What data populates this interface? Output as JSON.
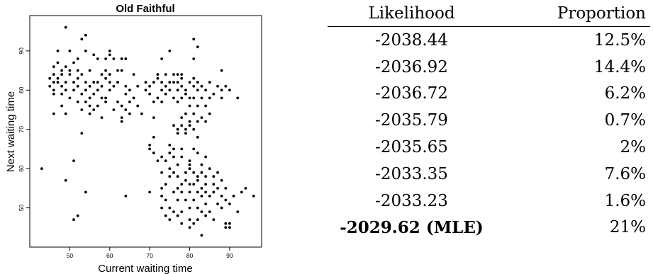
{
  "chart_data": {
    "type": "scatter",
    "title": "Old Faithful",
    "xlabel": "Current waiting time",
    "ylabel": "Next waiting time",
    "xlim": [
      40,
      98
    ],
    "ylim": [
      40,
      99
    ],
    "xticks": [
      "50",
      "60",
      "70",
      "80",
      "90"
    ],
    "yticks": [
      "50",
      "60",
      "70",
      "80",
      "90"
    ],
    "points": [
      [
        49,
        96
      ],
      [
        53,
        93
      ],
      [
        54,
        94
      ],
      [
        81,
        93
      ],
      [
        82,
        91
      ],
      [
        47,
        90
      ],
      [
        50,
        90
      ],
      [
        54,
        90
      ],
      [
        60,
        90
      ],
      [
        75,
        90
      ],
      [
        56,
        89
      ],
      [
        57,
        88
      ],
      [
        59,
        88
      ],
      [
        60,
        89
      ],
      [
        61,
        88
      ],
      [
        52,
        88
      ],
      [
        63,
        88
      ],
      [
        64,
        88
      ],
      [
        73,
        88
      ],
      [
        81,
        88
      ],
      [
        47,
        87
      ],
      [
        51,
        87
      ],
      [
        49,
        86
      ],
      [
        46,
        86
      ],
      [
        48,
        85
      ],
      [
        50,
        85
      ],
      [
        52,
        85
      ],
      [
        55,
        85
      ],
      [
        59,
        85
      ],
      [
        60,
        84
      ],
      [
        62,
        85
      ],
      [
        63,
        85
      ],
      [
        88,
        85
      ],
      [
        46,
        84
      ],
      [
        47,
        83
      ],
      [
        48,
        84
      ],
      [
        50,
        84
      ],
      [
        52,
        83
      ],
      [
        53,
        84
      ],
      [
        58,
        84
      ],
      [
        59,
        83
      ],
      [
        66,
        84
      ],
      [
        72,
        84
      ],
      [
        74,
        84
      ],
      [
        76,
        84
      ],
      [
        77,
        84
      ],
      [
        78,
        84
      ],
      [
        78,
        83
      ],
      [
        45,
        83
      ],
      [
        46,
        82
      ],
      [
        47,
        82
      ],
      [
        49,
        82
      ],
      [
        51,
        82
      ],
      [
        54,
        82
      ],
      [
        56,
        82
      ],
      [
        57,
        82
      ],
      [
        60,
        82
      ],
      [
        62,
        82
      ],
      [
        69,
        82
      ],
      [
        71,
        82
      ],
      [
        72,
        83
      ],
      [
        73,
        82
      ],
      [
        75,
        82
      ],
      [
        76,
        82
      ],
      [
        77,
        82
      ],
      [
        80,
        82
      ],
      [
        81,
        83
      ],
      [
        82,
        82
      ],
      [
        85,
        82
      ],
      [
        45,
        81
      ],
      [
        48,
        81
      ],
      [
        52,
        81
      ],
      [
        55,
        81
      ],
      [
        58,
        81
      ],
      [
        61,
        81
      ],
      [
        64,
        81
      ],
      [
        67,
        81
      ],
      [
        70,
        81
      ],
      [
        74,
        81
      ],
      [
        78,
        81
      ],
      [
        81,
        81
      ],
      [
        83,
        81
      ],
      [
        87,
        81
      ],
      [
        88,
        80
      ],
      [
        89,
        81
      ],
      [
        46,
        80
      ],
      [
        49,
        80
      ],
      [
        51,
        80
      ],
      [
        54,
        80
      ],
      [
        57,
        80
      ],
      [
        60,
        80
      ],
      [
        65,
        80
      ],
      [
        69,
        80
      ],
      [
        70,
        79
      ],
      [
        73,
        80
      ],
      [
        75,
        80
      ],
      [
        77,
        80
      ],
      [
        79,
        80
      ],
      [
        82,
        80
      ],
      [
        84,
        80
      ],
      [
        86,
        79
      ],
      [
        90,
        80
      ],
      [
        46,
        79
      ],
      [
        48,
        79
      ],
      [
        50,
        78
      ],
      [
        53,
        79
      ],
      [
        55,
        78
      ],
      [
        56,
        79
      ],
      [
        58,
        78
      ],
      [
        59,
        78
      ],
      [
        64,
        79
      ],
      [
        66,
        78
      ],
      [
        72,
        78
      ],
      [
        74,
        79
      ],
      [
        76,
        78
      ],
      [
        78,
        78
      ],
      [
        79,
        79
      ],
      [
        80,
        78
      ],
      [
        81,
        78
      ],
      [
        83,
        78
      ],
      [
        85,
        78
      ],
      [
        88,
        78
      ],
      [
        92,
        78
      ],
      [
        52,
        77
      ],
      [
        54,
        77
      ],
      [
        55,
        76
      ],
      [
        57,
        76
      ],
      [
        59,
        77
      ],
      [
        62,
        77
      ],
      [
        63,
        76
      ],
      [
        65,
        77
      ],
      [
        67,
        76
      ],
      [
        71,
        77
      ],
      [
        73,
        77
      ],
      [
        77,
        77
      ],
      [
        80,
        76
      ],
      [
        82,
        76
      ],
      [
        84,
        76
      ],
      [
        48,
        76
      ],
      [
        53,
        75
      ],
      [
        56,
        75
      ],
      [
        61,
        75
      ],
      [
        64,
        75
      ],
      [
        65,
        74
      ],
      [
        46,
        74
      ],
      [
        49,
        74
      ],
      [
        55,
        74
      ],
      [
        58,
        73
      ],
      [
        63,
        73
      ],
      [
        68,
        74
      ],
      [
        79,
        74
      ],
      [
        81,
        74
      ],
      [
        83,
        73
      ],
      [
        85,
        74
      ],
      [
        63,
        72
      ],
      [
        71,
        73
      ],
      [
        78,
        73
      ],
      [
        80,
        72
      ],
      [
        82,
        72
      ],
      [
        84,
        72
      ],
      [
        76,
        71
      ],
      [
        78,
        71
      ],
      [
        80,
        71
      ],
      [
        79,
        70
      ],
      [
        81,
        70
      ],
      [
        77,
        70
      ],
      [
        53,
        69
      ],
      [
        77,
        69
      ],
      [
        79,
        69
      ],
      [
        82,
        68
      ],
      [
        71,
        68
      ],
      [
        70,
        66
      ],
      [
        75,
        66
      ],
      [
        76,
        65
      ],
      [
        78,
        65
      ],
      [
        81,
        65
      ],
      [
        82,
        64
      ],
      [
        70,
        65
      ],
      [
        73,
        63
      ],
      [
        75,
        64
      ],
      [
        76,
        63
      ],
      [
        78,
        63
      ],
      [
        80,
        62
      ],
      [
        84,
        63
      ],
      [
        71,
        64
      ],
      [
        72,
        62
      ],
      [
        74,
        62
      ],
      [
        77,
        61
      ],
      [
        80,
        61
      ],
      [
        83,
        61
      ],
      [
        85,
        60
      ],
      [
        51,
        62
      ],
      [
        43,
        60
      ],
      [
        73,
        59
      ],
      [
        75,
        60
      ],
      [
        76,
        59
      ],
      [
        79,
        59
      ],
      [
        80,
        60
      ],
      [
        81,
        59
      ],
      [
        82,
        58
      ],
      [
        83,
        59
      ],
      [
        84,
        58
      ],
      [
        86,
        58
      ],
      [
        87,
        59
      ],
      [
        88,
        57
      ],
      [
        49,
        57
      ],
      [
        75,
        58
      ],
      [
        77,
        58
      ],
      [
        79,
        57
      ],
      [
        80,
        56
      ],
      [
        82,
        57
      ],
      [
        84,
        56
      ],
      [
        86,
        56
      ],
      [
        74,
        56
      ],
      [
        77,
        55
      ],
      [
        78,
        56
      ],
      [
        81,
        56
      ],
      [
        83,
        55
      ],
      [
        82,
        54
      ],
      [
        84,
        54
      ],
      [
        87,
        55
      ],
      [
        89,
        55
      ],
      [
        91,
        53
      ],
      [
        93,
        54
      ],
      [
        94,
        55
      ],
      [
        96,
        53
      ],
      [
        54,
        54
      ],
      [
        64,
        53
      ],
      [
        70,
        54
      ],
      [
        73,
        55
      ],
      [
        73,
        53
      ],
      [
        76,
        54
      ],
      [
        78,
        54
      ],
      [
        80,
        54
      ],
      [
        83,
        53
      ],
      [
        85,
        53
      ],
      [
        86,
        54
      ],
      [
        88,
        53
      ],
      [
        89,
        52
      ],
      [
        74,
        52
      ],
      [
        77,
        52
      ],
      [
        79,
        52
      ],
      [
        81,
        52
      ],
      [
        84,
        51
      ],
      [
        87,
        51
      ],
      [
        90,
        51
      ],
      [
        73,
        50
      ],
      [
        75,
        50
      ],
      [
        76,
        49
      ],
      [
        78,
        49
      ],
      [
        80,
        50
      ],
      [
        82,
        50
      ],
      [
        83,
        49
      ],
      [
        85,
        49
      ],
      [
        88,
        50
      ],
      [
        74,
        48
      ],
      [
        77,
        48
      ],
      [
        80,
        47
      ],
      [
        81,
        46
      ],
      [
        82,
        47
      ],
      [
        84,
        48
      ],
      [
        86,
        47
      ],
      [
        89,
        46
      ],
      [
        90,
        45
      ],
      [
        89,
        45
      ],
      [
        90,
        46
      ],
      [
        51,
        47
      ],
      [
        52,
        48
      ],
      [
        75,
        47
      ],
      [
        78,
        46
      ],
      [
        80,
        45
      ],
      [
        83,
        43
      ],
      [
        92,
        49
      ]
    ]
  },
  "table": {
    "headers": [
      "Likelihood",
      "Proportion"
    ],
    "rows": [
      [
        "-2038.44",
        "12.5%"
      ],
      [
        "-2036.92",
        "14.4%"
      ],
      [
        "-2036.72",
        "6.2%"
      ],
      [
        "-2035.79",
        "0.7%"
      ],
      [
        "-2035.65",
        "2%"
      ],
      [
        "-2033.35",
        "7.6%"
      ],
      [
        "-2033.23",
        "1.6%"
      ],
      [
        "-2029.62 (MLE)",
        "21%"
      ]
    ],
    "bold_row": 7
  }
}
